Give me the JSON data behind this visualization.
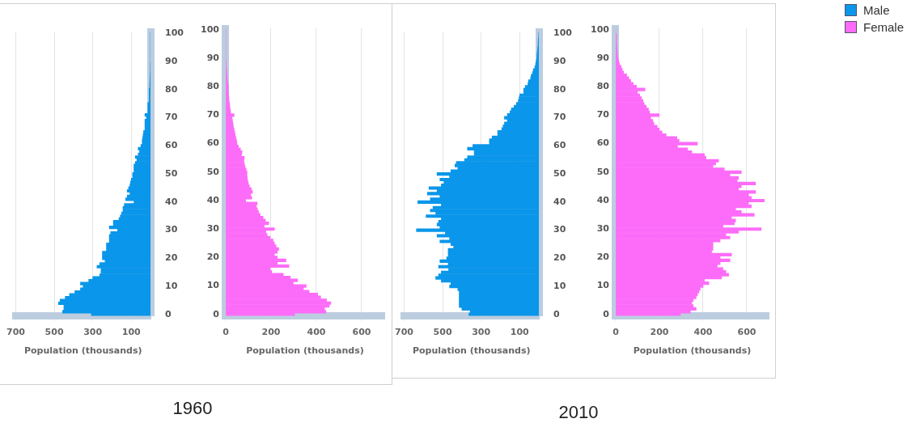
{
  "chart_data": [
    {
      "type": "bar",
      "orientation": "horizontal",
      "title": "1960",
      "xlabel": "Population (thousands)",
      "categories": [
        "100",
        null,
        null,
        null,
        null,
        null,
        null,
        null,
        null,
        null,
        "90",
        null,
        null,
        null,
        null,
        null,
        null,
        null,
        null,
        null,
        "80",
        null,
        null,
        null,
        null,
        null,
        null,
        null,
        null,
        null,
        "70",
        null,
        null,
        null,
        null,
        null,
        null,
        null,
        null,
        null,
        "60",
        null,
        null,
        null,
        null,
        null,
        null,
        null,
        null,
        null,
        "50",
        null,
        null,
        null,
        null,
        null,
        null,
        null,
        null,
        null,
        "40",
        null,
        null,
        null,
        null,
        null,
        null,
        null,
        null,
        null,
        "30",
        null,
        null,
        null,
        null,
        null,
        null,
        null,
        null,
        null,
        "20",
        null,
        null,
        null,
        null,
        null,
        null,
        null,
        null,
        null,
        "10",
        null,
        null,
        null,
        null,
        null,
        null,
        null,
        null,
        null,
        "0"
      ],
      "xlim": [
        700,
        0
      ],
      "xticks": [
        700,
        500,
        300,
        100
      ],
      "grid": "x",
      "series": [
        {
          "color": "#0a96ea",
          "values": [
            0,
            0,
            0,
            0,
            0,
            0,
            0,
            0,
            0,
            0,
            0,
            1,
            1,
            1,
            2,
            2,
            3,
            3,
            4,
            4,
            7,
            7,
            7,
            7,
            7,
            14,
            14,
            14,
            14,
            29,
            21,
            29,
            29,
            29,
            29,
            36,
            38,
            40,
            43,
            43,
            50,
            64,
            57,
            64,
            79,
            71,
            79,
            86,
            86,
            86,
            93,
            93,
            100,
            104,
            107,
            114,
            121,
            107,
            121,
            129,
            86,
            136,
            143,
            143,
            150,
            157,
            164,
            193,
            193,
            214,
            171,
            207,
            214,
            214,
            214,
            229,
            229,
            229,
            250,
            250,
            250,
            236,
            264,
            278,
            257,
            257,
            264,
            300,
            321,
            364,
            350,
            364,
            393,
            421,
            443,
            470,
            478,
            450,
            450,
            457,
            307
          ]
        }
      ]
    },
    {
      "type": "bar",
      "orientation": "horizontal",
      "xlabel": "Population (thousands)",
      "categories": [
        "100",
        null,
        null,
        null,
        null,
        null,
        null,
        null,
        null,
        null,
        "90",
        null,
        null,
        null,
        null,
        null,
        null,
        null,
        null,
        null,
        "80",
        null,
        null,
        null,
        null,
        null,
        null,
        null,
        null,
        null,
        "70",
        null,
        null,
        null,
        null,
        null,
        null,
        null,
        null,
        null,
        "60",
        null,
        null,
        null,
        null,
        null,
        null,
        null,
        null,
        null,
        "50",
        null,
        null,
        null,
        null,
        null,
        null,
        null,
        null,
        null,
        "40",
        null,
        null,
        null,
        null,
        null,
        null,
        null,
        null,
        null,
        "30",
        null,
        null,
        null,
        null,
        null,
        null,
        null,
        null,
        null,
        "20",
        null,
        null,
        null,
        null,
        null,
        null,
        null,
        null,
        null,
        "10",
        null,
        null,
        null,
        null,
        null,
        null,
        null,
        null,
        null,
        "0"
      ],
      "xlim": [
        0,
        700
      ],
      "xticks": [
        0,
        200,
        400,
        600
      ],
      "grid": "x",
      "series": [
        {
          "color": "#fd6cf8",
          "values": [
            0,
            0,
            0,
            0,
            0,
            0,
            0,
            0,
            0,
            0,
            0,
            1,
            2,
            3,
            4,
            5,
            6,
            7,
            8,
            9,
            12,
            11,
            12,
            13,
            14,
            15,
            17,
            18,
            20,
            22,
            37,
            28,
            30,
            32,
            34,
            37,
            40,
            42,
            45,
            48,
            50,
            56,
            65,
            72,
            70,
            82,
            80,
            82,
            85,
            90,
            94,
            94,
            95,
            97,
            100,
            105,
            113,
            118,
            110,
            115,
            88,
            139,
            135,
            140,
            145,
            152,
            165,
            175,
            190,
            170,
            215,
            177,
            183,
            196,
            209,
            215,
            222,
            234,
            228,
            215,
            228,
            266,
            228,
            279,
            196,
            203,
            254,
            285,
            317,
            298,
            355,
            343,
            368,
            406,
            419,
            445,
            464,
            457,
            436,
            442,
            304
          ]
        }
      ]
    },
    {
      "type": "bar",
      "orientation": "horizontal",
      "title": "2010",
      "xlabel": "Population (thousands)",
      "legend": "top right",
      "categories": [
        "100",
        null,
        null,
        null,
        null,
        null,
        null,
        null,
        null,
        null,
        "90",
        null,
        null,
        null,
        null,
        null,
        null,
        null,
        null,
        null,
        "80",
        null,
        null,
        null,
        null,
        null,
        null,
        null,
        null,
        null,
        "70",
        null,
        null,
        null,
        null,
        null,
        null,
        null,
        null,
        null,
        "60",
        null,
        null,
        null,
        null,
        null,
        null,
        null,
        null,
        null,
        "50",
        null,
        null,
        null,
        null,
        null,
        null,
        null,
        null,
        null,
        "40",
        null,
        null,
        null,
        null,
        null,
        null,
        null,
        null,
        null,
        "30",
        null,
        null,
        null,
        null,
        null,
        null,
        null,
        null,
        null,
        "20",
        null,
        null,
        null,
        null,
        null,
        null,
        null,
        null,
        null,
        "10",
        null,
        null,
        null,
        null,
        null,
        null,
        null,
        null,
        null,
        "0"
      ],
      "xlim": [
        700,
        0
      ],
      "xticks": [
        700,
        500,
        300,
        100
      ],
      "grid": "x",
      "series": [
        {
          "name": "Male",
          "color": "#0a96ea",
          "values": [
            1,
            1,
            3,
            4,
            4,
            6,
            7,
            9,
            10,
            11,
            14,
            17,
            21,
            29,
            33,
            40,
            43,
            54,
            57,
            71,
            79,
            79,
            100,
            103,
            107,
            117,
            129,
            143,
            150,
            164,
            179,
            164,
            179,
            186,
            193,
            214,
            214,
            243,
            257,
            257,
            343,
            371,
            336,
            336,
            371,
            386,
            429,
            436,
            421,
            457,
            529,
            464,
            514,
            493,
            507,
            571,
            529,
            579,
            514,
            564,
            629,
            507,
            550,
            564,
            536,
            586,
            507,
            521,
            529,
            514,
            636,
            486,
            529,
            464,
            514,
            457,
            443,
            471,
            471,
            471,
            479,
            514,
            471,
            521,
            469,
            507,
            521,
            536,
            507,
            457,
            464,
            421,
            414,
            414,
            414,
            414,
            414,
            414,
            400,
            357,
            364
          ]
        }
      ]
    },
    {
      "type": "bar",
      "orientation": "horizontal",
      "xlabel": "Population (thousands)",
      "legend": "top right",
      "categories": [
        "100",
        null,
        null,
        null,
        null,
        null,
        null,
        null,
        null,
        null,
        "90",
        null,
        null,
        null,
        null,
        null,
        null,
        null,
        null,
        null,
        "80",
        null,
        null,
        null,
        null,
        null,
        null,
        null,
        null,
        null,
        "70",
        null,
        null,
        null,
        null,
        null,
        null,
        null,
        null,
        null,
        "60",
        null,
        null,
        null,
        null,
        null,
        null,
        null,
        null,
        null,
        "50",
        null,
        null,
        null,
        null,
        null,
        null,
        null,
        null,
        null,
        "40",
        null,
        null,
        null,
        null,
        null,
        null,
        null,
        null,
        null,
        "30",
        null,
        null,
        null,
        null,
        null,
        null,
        null,
        null,
        null,
        "20",
        null,
        null,
        null,
        null,
        null,
        null,
        null,
        null,
        null,
        "10",
        null,
        null,
        null,
        null,
        null,
        null,
        null,
        null,
        null,
        "0"
      ],
      "xlim": [
        0,
        700
      ],
      "xticks": [
        0,
        200,
        400,
        600
      ],
      "grid": "x",
      "series": [
        {
          "name": "Female",
          "color": "#fd6cf8",
          "values": [
            0,
            0,
            4,
            4,
            4,
            5,
            5,
            6,
            7,
            8,
            10,
            14,
            17,
            25,
            30,
            36,
            50,
            60,
            69,
            80,
            95,
            134,
            100,
            110,
            118,
            125,
            130,
            140,
            150,
            155,
            199,
            160,
            170,
            175,
            190,
            200,
            212,
            231,
            280,
            290,
            374,
            283,
            329,
            348,
            406,
            413,
            471,
            458,
            445,
            497,
            575,
            523,
            562,
            556,
            640,
            575,
            562,
            640,
            608,
            621,
            680,
            608,
            621,
            549,
            575,
            634,
            530,
            549,
            543,
            491,
            666,
            562,
            504,
            523,
            478,
            445,
            445,
            445,
            439,
            530,
            478,
            523,
            478,
            465,
            491,
            504,
            517,
            484,
            406,
            426,
            400,
            387,
            381,
            374,
            368,
            355,
            348,
            355,
            368,
            342,
            296
          ]
        }
      ]
    }
  ]
}
